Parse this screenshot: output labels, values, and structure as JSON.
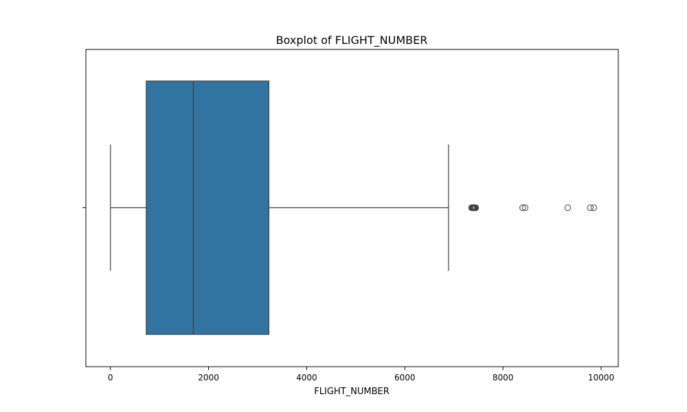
{
  "chart_data": {
    "type": "boxplot",
    "title": "Boxplot of FLIGHT_NUMBER",
    "xlabel": "FLIGHT_NUMBER",
    "ylabel": "",
    "orientation": "horizontal",
    "xlim": [
      -500,
      10350
    ],
    "xticks": [
      0,
      2000,
      4000,
      6000,
      8000,
      10000
    ],
    "xtick_labels": [
      "0",
      "2000",
      "4000",
      "6000",
      "8000",
      "10000"
    ],
    "grid": false,
    "legend": "none",
    "box": {
      "whisker_low": 1,
      "q1": 730,
      "median": 1690,
      "q3": 3230,
      "whisker_high": 6890
    },
    "outliers": [
      7360,
      7375,
      7390,
      7400,
      7410,
      7420,
      7435,
      7445,
      8400,
      8450,
      9320,
      9780,
      9850
    ],
    "colors": {
      "box_fill": "#3274a1",
      "line": "#3f3f3f",
      "outlier_edge": "#3f3f3f"
    }
  }
}
